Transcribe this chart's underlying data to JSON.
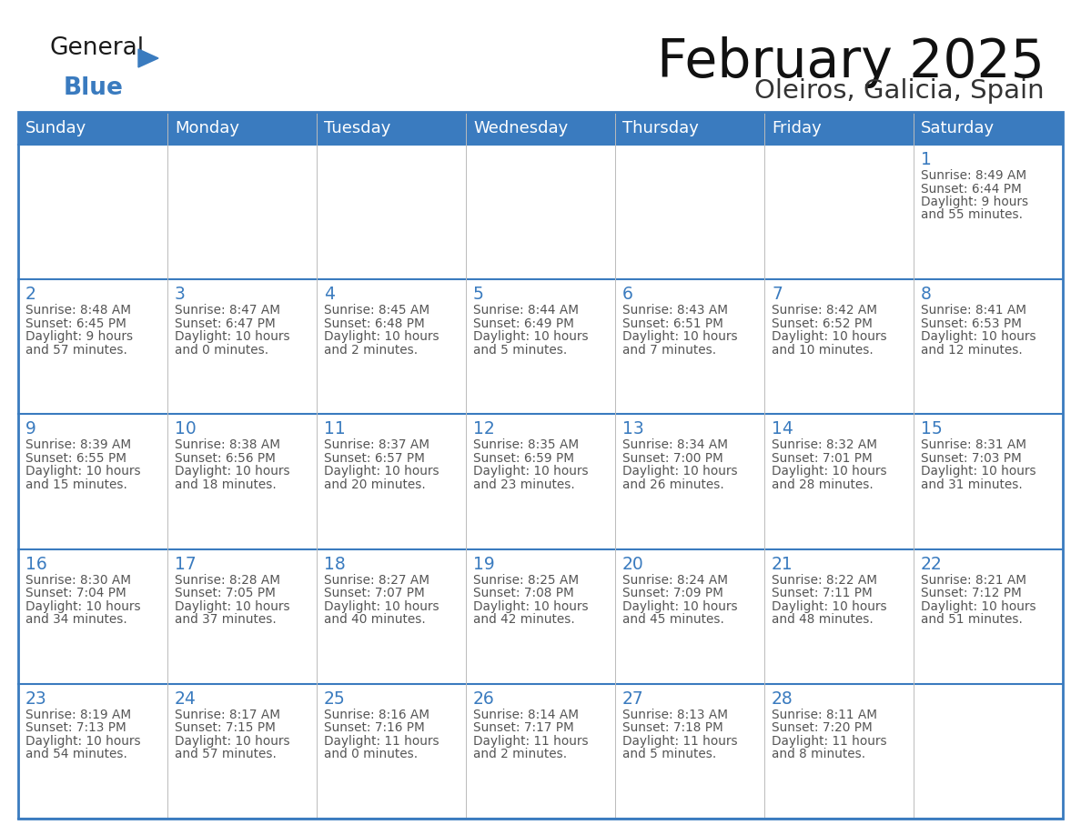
{
  "title": "February 2025",
  "subtitle": "Oleiros, Galicia, Spain",
  "header_bg": "#3a7bbf",
  "header_text": "#ffffff",
  "border_color": "#3a7bbf",
  "text_color": "#555555",
  "day_number_color": "#3a7bbf",
  "days_of_week": [
    "Sunday",
    "Monday",
    "Tuesday",
    "Wednesday",
    "Thursday",
    "Friday",
    "Saturday"
  ],
  "logo_general_color": "#1a1a1a",
  "logo_blue_color": "#3a7bbf",
  "calendar_data": [
    [
      null,
      null,
      null,
      null,
      null,
      null,
      {
        "day": 1,
        "sunrise": "8:49 AM",
        "sunset": "6:44 PM",
        "daylight": "9 hours\nand 55 minutes."
      }
    ],
    [
      {
        "day": 2,
        "sunrise": "8:48 AM",
        "sunset": "6:45 PM",
        "daylight": "9 hours\nand 57 minutes."
      },
      {
        "day": 3,
        "sunrise": "8:47 AM",
        "sunset": "6:47 PM",
        "daylight": "10 hours\nand 0 minutes."
      },
      {
        "day": 4,
        "sunrise": "8:45 AM",
        "sunset": "6:48 PM",
        "daylight": "10 hours\nand 2 minutes."
      },
      {
        "day": 5,
        "sunrise": "8:44 AM",
        "sunset": "6:49 PM",
        "daylight": "10 hours\nand 5 minutes."
      },
      {
        "day": 6,
        "sunrise": "8:43 AM",
        "sunset": "6:51 PM",
        "daylight": "10 hours\nand 7 minutes."
      },
      {
        "day": 7,
        "sunrise": "8:42 AM",
        "sunset": "6:52 PM",
        "daylight": "10 hours\nand 10 minutes."
      },
      {
        "day": 8,
        "sunrise": "8:41 AM",
        "sunset": "6:53 PM",
        "daylight": "10 hours\nand 12 minutes."
      }
    ],
    [
      {
        "day": 9,
        "sunrise": "8:39 AM",
        "sunset": "6:55 PM",
        "daylight": "10 hours\nand 15 minutes."
      },
      {
        "day": 10,
        "sunrise": "8:38 AM",
        "sunset": "6:56 PM",
        "daylight": "10 hours\nand 18 minutes."
      },
      {
        "day": 11,
        "sunrise": "8:37 AM",
        "sunset": "6:57 PM",
        "daylight": "10 hours\nand 20 minutes."
      },
      {
        "day": 12,
        "sunrise": "8:35 AM",
        "sunset": "6:59 PM",
        "daylight": "10 hours\nand 23 minutes."
      },
      {
        "day": 13,
        "sunrise": "8:34 AM",
        "sunset": "7:00 PM",
        "daylight": "10 hours\nand 26 minutes."
      },
      {
        "day": 14,
        "sunrise": "8:32 AM",
        "sunset": "7:01 PM",
        "daylight": "10 hours\nand 28 minutes."
      },
      {
        "day": 15,
        "sunrise": "8:31 AM",
        "sunset": "7:03 PM",
        "daylight": "10 hours\nand 31 minutes."
      }
    ],
    [
      {
        "day": 16,
        "sunrise": "8:30 AM",
        "sunset": "7:04 PM",
        "daylight": "10 hours\nand 34 minutes."
      },
      {
        "day": 17,
        "sunrise": "8:28 AM",
        "sunset": "7:05 PM",
        "daylight": "10 hours\nand 37 minutes."
      },
      {
        "day": 18,
        "sunrise": "8:27 AM",
        "sunset": "7:07 PM",
        "daylight": "10 hours\nand 40 minutes."
      },
      {
        "day": 19,
        "sunrise": "8:25 AM",
        "sunset": "7:08 PM",
        "daylight": "10 hours\nand 42 minutes."
      },
      {
        "day": 20,
        "sunrise": "8:24 AM",
        "sunset": "7:09 PM",
        "daylight": "10 hours\nand 45 minutes."
      },
      {
        "day": 21,
        "sunrise": "8:22 AM",
        "sunset": "7:11 PM",
        "daylight": "10 hours\nand 48 minutes."
      },
      {
        "day": 22,
        "sunrise": "8:21 AM",
        "sunset": "7:12 PM",
        "daylight": "10 hours\nand 51 minutes."
      }
    ],
    [
      {
        "day": 23,
        "sunrise": "8:19 AM",
        "sunset": "7:13 PM",
        "daylight": "10 hours\nand 54 minutes."
      },
      {
        "day": 24,
        "sunrise": "8:17 AM",
        "sunset": "7:15 PM",
        "daylight": "10 hours\nand 57 minutes."
      },
      {
        "day": 25,
        "sunrise": "8:16 AM",
        "sunset": "7:16 PM",
        "daylight": "11 hours\nand 0 minutes."
      },
      {
        "day": 26,
        "sunrise": "8:14 AM",
        "sunset": "7:17 PM",
        "daylight": "11 hours\nand 2 minutes."
      },
      {
        "day": 27,
        "sunrise": "8:13 AM",
        "sunset": "7:18 PM",
        "daylight": "11 hours\nand 5 minutes."
      },
      {
        "day": 28,
        "sunrise": "8:11 AM",
        "sunset": "7:20 PM",
        "daylight": "11 hours\nand 8 minutes."
      },
      null
    ]
  ]
}
